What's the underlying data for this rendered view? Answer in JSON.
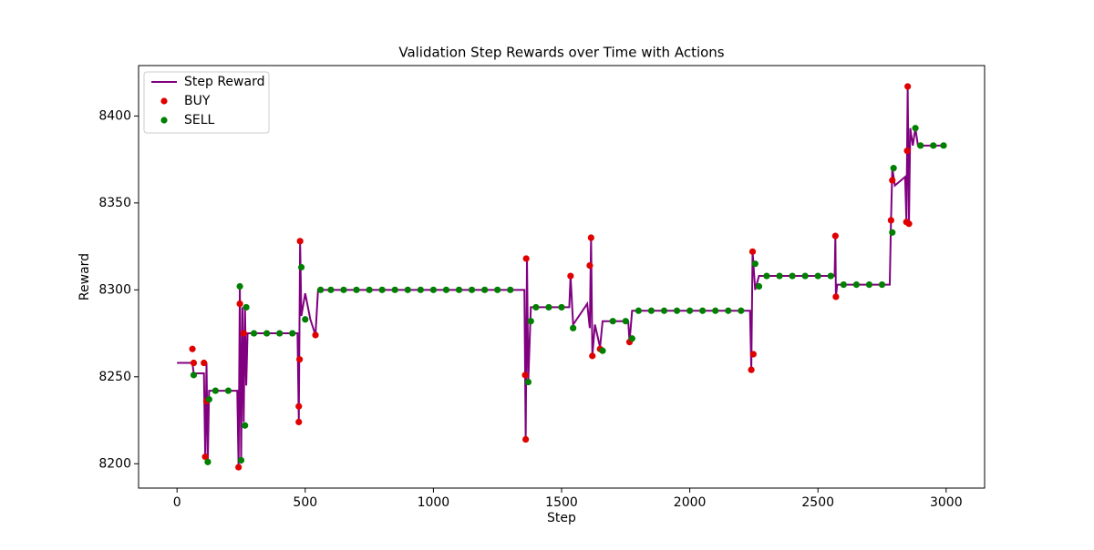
{
  "chart_data": {
    "type": "line",
    "title": "Validation Step Rewards over Time with Actions",
    "x_label": "Step",
    "y_label": "Reward",
    "xlim": [
      -150,
      3150
    ],
    "ylim": [
      8186,
      8429
    ],
    "xticks": [
      0,
      500,
      1000,
      1500,
      2000,
      2500,
      3000
    ],
    "yticks": [
      8200,
      8250,
      8300,
      8350,
      8400
    ],
    "legend": "upper left",
    "series": [
      {
        "name": "Step Reward",
        "type": "line",
        "color": "#800080",
        "x": [
          0,
          60,
          65,
          105,
          110,
          115,
          120,
          125,
          235,
          240,
          245,
          250,
          255,
          260,
          265,
          270,
          275,
          470,
          475,
          480,
          485,
          500,
          520,
          540,
          550,
          1355,
          1360,
          1365,
          1370,
          1380,
          1530,
          1535,
          1545,
          1600,
          1610,
          1615,
          1620,
          1630,
          1650,
          1660,
          1760,
          1765,
          1775,
          2235,
          2240,
          2245,
          2255,
          2270,
          2565,
          2568,
          2570,
          2575,
          2780,
          2785,
          2790,
          2800,
          2840,
          2845,
          2850,
          2855,
          2860,
          2870,
          2880,
          2890,
          2990
        ],
        "y": [
          8258,
          8258,
          8252,
          8252,
          8203,
          8258,
          8201,
          8242,
          8242,
          8198,
          8302,
          8200,
          8290,
          8224,
          8290,
          8245,
          8275,
          8275,
          8224,
          8328,
          8285,
          8298,
          8283,
          8274,
          8300,
          8300,
          8214,
          8318,
          8247,
          8290,
          8290,
          8308,
          8280,
          8292,
          8278,
          8330,
          8262,
          8280,
          8267,
          8282,
          8282,
          8270,
          8288,
          8288,
          8254,
          8322,
          8300,
          8308,
          8308,
          8331,
          8296,
          8303,
          8303,
          8340,
          8370,
          8360,
          8365,
          8339,
          8417,
          8338,
          8393,
          8383,
          8393,
          8383,
          8383
        ]
      },
      {
        "name": "BUY",
        "type": "scatter",
        "color": "#e00000",
        "x": [
          60,
          65,
          105,
          110,
          115,
          240,
          245,
          260,
          475,
          475,
          480,
          478,
          540,
          1358,
          1360,
          1362,
          1535,
          1615,
          1610,
          1620,
          1650,
          1765,
          2240,
          2245,
          2248,
          2568,
          2570,
          2785,
          2850,
          2845,
          2855,
          2848,
          2790
        ],
        "y": [
          8266,
          8258,
          8258,
          8204,
          8236,
          8198,
          8292,
          8275,
          8224,
          8233,
          8328,
          8260,
          8274,
          8251,
          8214,
          8318,
          8308,
          8330,
          8314,
          8262,
          8266,
          8270,
          8254,
          8322,
          8263,
          8331,
          8296,
          8340,
          8417,
          8339,
          8338,
          8380,
          8363
        ]
      },
      {
        "name": "SELL",
        "type": "scatter",
        "color": "#008000",
        "x": [
          65,
          120,
          125,
          245,
          250,
          265,
          270,
          485,
          500,
          560,
          1370,
          1380,
          1545,
          1660,
          1775,
          2255,
          2270,
          2790,
          2795,
          2880,
          150,
          200,
          300,
          350,
          400,
          450,
          600,
          650,
          700,
          750,
          800,
          850,
          900,
          950,
          1000,
          1050,
          1100,
          1150,
          1200,
          1250,
          1300,
          1400,
          1450,
          1500,
          1700,
          1750,
          1800,
          1850,
          1900,
          1950,
          2000,
          2050,
          2100,
          2150,
          2200,
          2300,
          2350,
          2400,
          2450,
          2500,
          2550,
          2600,
          2650,
          2700,
          2750,
          2900,
          2950,
          2990
        ],
        "y": [
          8251,
          8201,
          8237,
          8302,
          8202,
          8222,
          8290,
          8313,
          8283,
          8300,
          8247,
          8282,
          8278,
          8265,
          8272,
          8315,
          8302,
          8333,
          8370,
          8393,
          8242,
          8242,
          8275,
          8275,
          8275,
          8275,
          8300,
          8300,
          8300,
          8300,
          8300,
          8300,
          8300,
          8300,
          8300,
          8300,
          8300,
          8300,
          8300,
          8300,
          8300,
          8290,
          8290,
          8290,
          8282,
          8282,
          8288,
          8288,
          8288,
          8288,
          8288,
          8288,
          8288,
          8288,
          8288,
          8308,
          8308,
          8308,
          8308,
          8308,
          8308,
          8303,
          8303,
          8303,
          8303,
          8383,
          8383,
          8383
        ]
      }
    ]
  }
}
